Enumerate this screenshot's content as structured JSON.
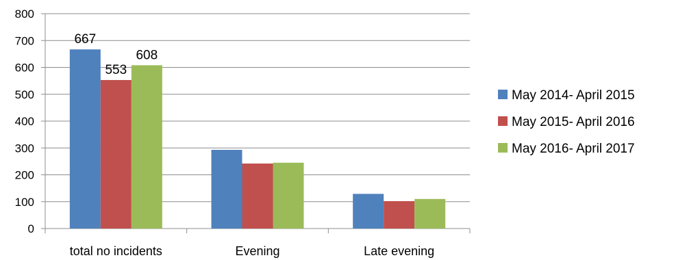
{
  "chart_data": {
    "type": "bar",
    "categories": [
      "total no incidents",
      "Evening",
      "Late evening"
    ],
    "series": [
      {
        "name": "May 2014- April 2015",
        "color": "#4F81BD",
        "values": [
          667,
          293,
          129
        ]
      },
      {
        "name": "May 2015- April 2016",
        "color": "#C0504D",
        "values": [
          553,
          242,
          102
        ]
      },
      {
        "name": "May 2016- April 2017",
        "color": "#9BBB59",
        "values": [
          608,
          245,
          110
        ]
      }
    ],
    "data_labels": {
      "series_index": [
        0,
        1,
        2
      ],
      "category_index": 0
    },
    "title": "",
    "xlabel": "",
    "ylabel": "",
    "ylim": [
      0,
      800
    ],
    "yticks": [
      0,
      100,
      200,
      300,
      400,
      500,
      600,
      700,
      800
    ],
    "grid": true,
    "legend_position": "right"
  }
}
